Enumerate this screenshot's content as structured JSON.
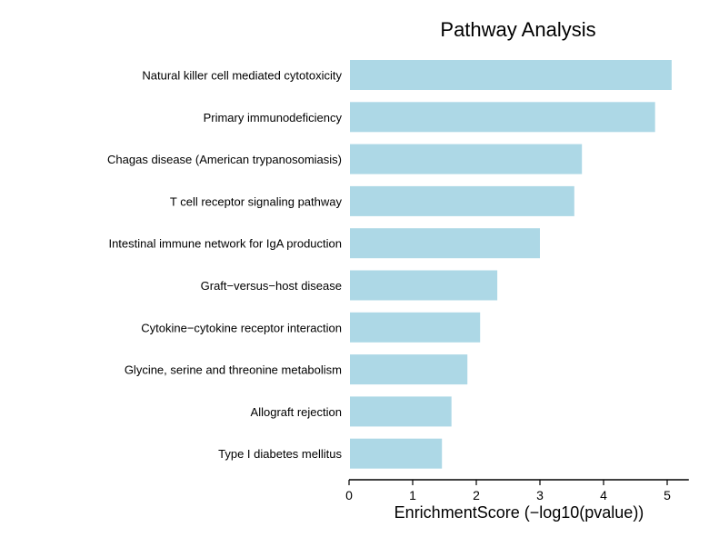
{
  "chart_data": {
    "type": "bar",
    "orientation": "horizontal",
    "title": "Pathway Analysis",
    "xlabel": "EnrichmentScore (−log10(pvalue))",
    "ylabel": "",
    "xlim": [
      0,
      5.34
    ],
    "xticks": [
      0,
      1,
      2,
      3,
      4,
      5
    ],
    "grid": false,
    "bar_color": "#add8e6",
    "categories": [
      "Natural killer cell mediated cytotoxicity",
      "Primary immunodeficiency",
      "Chagas disease (American trypanosomiasis)",
      "T cell receptor signaling pathway",
      "Intestinal immune network for IgA production",
      "Graft−versus−host disease",
      "Cytokine−cytokine receptor interaction",
      "Glycine, serine and threonine metabolism",
      "Allograft rejection",
      "Type I diabetes mellitus"
    ],
    "values": [
      5.07,
      4.81,
      3.66,
      3.54,
      3.0,
      2.33,
      2.06,
      1.86,
      1.61,
      1.46
    ]
  }
}
